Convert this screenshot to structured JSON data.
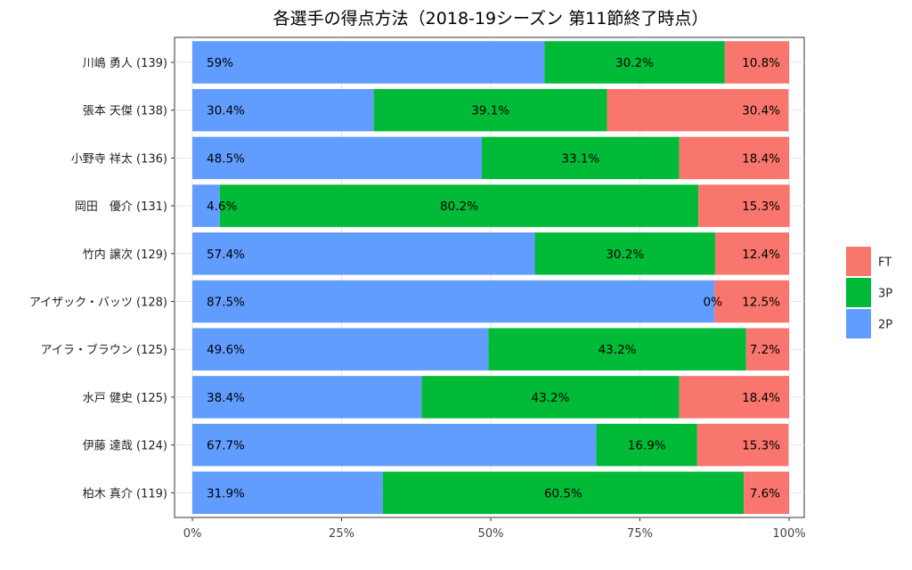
{
  "chart_data": {
    "type": "bar",
    "orientation": "horizontal",
    "stacked": "percent",
    "title": "各選手の得点方法（2018-19シーズン 第11節終了時点）",
    "xlabel": "",
    "ylabel": "",
    "xlim": [
      0,
      100
    ],
    "x_ticks": [
      "0%",
      "25%",
      "50%",
      "75%",
      "100%"
    ],
    "x_tick_values": [
      0,
      25,
      50,
      75,
      100
    ],
    "grid": true,
    "legend_position": "right",
    "legend": [
      "FT",
      "3P",
      "2P"
    ],
    "categories": [
      "川嶋 勇人 (139)",
      "張本 天傑 (138)",
      "小野寺 祥太 (136)",
      "岡田　優介 (131)",
      "竹内 譲次 (129)",
      "アイザック・バッツ (128)",
      "アイラ・ブラウン (125)",
      "水戸 健史 (125)",
      "伊藤 達哉 (124)",
      "柏木 真介 (119)"
    ],
    "series": [
      {
        "name": "2P",
        "color": "#619CFF",
        "values": [
          59,
          30.4,
          48.5,
          4.6,
          57.4,
          87.5,
          49.6,
          38.4,
          67.7,
          31.9
        ],
        "labels": [
          "59%",
          "30.4%",
          "48.5%",
          "4.6%",
          "57.4%",
          "87.5%",
          "49.6%",
          "38.4%",
          "67.7%",
          "31.9%"
        ]
      },
      {
        "name": "3P",
        "color": "#00BA38",
        "values": [
          30.2,
          39.1,
          33.1,
          80.2,
          30.2,
          0,
          43.2,
          43.2,
          16.9,
          60.5
        ],
        "labels": [
          "30.2%",
          "39.1%",
          "33.1%",
          "80.2%",
          "30.2%",
          "0%",
          "43.2%",
          "43.2%",
          "16.9%",
          "60.5%"
        ]
      },
      {
        "name": "FT",
        "color": "#F8766D",
        "values": [
          10.8,
          30.4,
          18.4,
          15.3,
          12.4,
          12.5,
          7.2,
          18.4,
          15.3,
          7.6
        ],
        "labels": [
          "10.8%",
          "30.4%",
          "18.4%",
          "15.3%",
          "12.4%",
          "12.5%",
          "7.2%",
          "18.4%",
          "15.3%",
          "7.6%"
        ]
      }
    ]
  }
}
